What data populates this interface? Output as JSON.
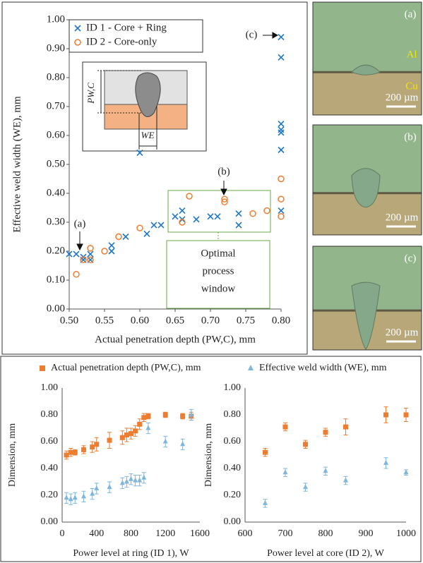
{
  "chart_data": [
    {
      "type": "scatter",
      "x_label": "Actual penetration depth (PW,C), mm",
      "y_label": "Effective weld width (WE), mm",
      "xlim": [
        0.5,
        0.8
      ],
      "xticks": [
        {
          "value": 0.5,
          "label": "0.50"
        },
        {
          "value": 0.55,
          "label": "0.55"
        },
        {
          "value": 0.6,
          "label": "0.60"
        },
        {
          "value": 0.65,
          "label": "0.65"
        },
        {
          "value": 0.7,
          "label": "0.70"
        },
        {
          "value": 0.75,
          "label": "0.75"
        },
        {
          "value": 0.8,
          "label": "0.80"
        }
      ],
      "ylim": [
        0,
        1
      ],
      "yticks": [
        {
          "value": 0,
          "label": "0.00"
        },
        {
          "value": 0.1,
          "label": "0.10"
        },
        {
          "value": 0.2,
          "label": "0.20"
        },
        {
          "value": 0.3,
          "label": "0.30"
        },
        {
          "value": 0.4,
          "label": "0.40"
        },
        {
          "value": 0.5,
          "label": "0.50"
        },
        {
          "value": 0.6,
          "label": "0.60"
        },
        {
          "value": 0.7,
          "label": "0.70"
        },
        {
          "value": 0.8,
          "label": "0.80"
        },
        {
          "value": 0.9,
          "label": "0.90"
        },
        {
          "value": 1,
          "label": "1.00"
        }
      ],
      "grid": false,
      "series": [
        {
          "name": "ID 1 - Core + Ring",
          "color": "#1f77c4",
          "marker": "x",
          "x": [
            0.5,
            0.51,
            0.52,
            0.52,
            0.53,
            0.53,
            0.56,
            0.56,
            0.58,
            0.6,
            0.61,
            0.62,
            0.63,
            0.65,
            0.66,
            0.66,
            0.68,
            0.7,
            0.71,
            0.74,
            0.74,
            0.8,
            0.8,
            0.8,
            0.8,
            0.8,
            0.8,
            0.8
          ],
          "values": [
            0.19,
            0.19,
            0.18,
            0.17,
            0.19,
            0.17,
            0.22,
            0.2,
            0.25,
            0.54,
            0.26,
            0.29,
            0.29,
            0.32,
            0.34,
            0.31,
            0.31,
            0.32,
            0.32,
            0.33,
            0.29,
            0.94,
            0.87,
            0.64,
            0.62,
            0.61,
            0.55,
            0.34
          ]
        },
        {
          "name": "ID 2 - Core-only",
          "color": "#ed7d31",
          "marker": "circle",
          "x": [
            0.51,
            0.52,
            0.53,
            0.53,
            0.55,
            0.57,
            0.6,
            0.66,
            0.67,
            0.72,
            0.72,
            0.76,
            0.78,
            0.8,
            0.8,
            0.8
          ],
          "values": [
            0.12,
            0.17,
            0.21,
            0.17,
            0.2,
            0.25,
            0.28,
            0.3,
            0.39,
            0.38,
            0.37,
            0.33,
            0.34,
            0.45,
            0.38,
            0.32
          ]
        }
      ],
      "legend": "top-left",
      "annotations": [
        "(a)",
        "(b)",
        "(c)"
      ],
      "window_label": [
        "Optimal",
        "process",
        "window"
      ],
      "inset_labels": [
        "PW,C",
        "WE"
      ]
    },
    {
      "type": "errorbar",
      "x_label": "Power level at ring (ID 1), W",
      "y_label": "Dimension, mm",
      "xlim": [
        0,
        1600
      ],
      "xticks": [
        0,
        400,
        800,
        1200,
        1600
      ],
      "ylim": [
        0,
        1
      ],
      "yticks": [
        {
          "value": 0,
          "label": "0.00"
        },
        {
          "value": 0.2,
          "label": "0.20"
        },
        {
          "value": 0.4,
          "label": "0.40"
        },
        {
          "value": 0.6,
          "label": "0.60"
        },
        {
          "value": 0.8,
          "label": "0.80"
        },
        {
          "value": 1,
          "label": "1.00"
        }
      ],
      "grid": false,
      "x": [
        50,
        100,
        150,
        250,
        350,
        400,
        550,
        700,
        750,
        800,
        850,
        900,
        950,
        1000,
        1200,
        1400,
        1500
      ],
      "series": [
        {
          "name": "Actual penetration depth (PW,C), mm",
          "color": "#ed7d31",
          "marker": "square",
          "values": [
            0.5,
            0.52,
            0.52,
            0.54,
            0.56,
            0.58,
            0.61,
            0.63,
            0.65,
            0.66,
            0.68,
            0.73,
            0.78,
            0.79,
            0.8,
            0.79,
            0.79
          ],
          "errors": [
            0.03,
            0.03,
            0.02,
            0.03,
            0.04,
            0.05,
            0.06,
            0.05,
            0.05,
            0.04,
            0.04,
            0.04,
            0.03,
            0.02,
            0.02,
            0.02,
            0.03
          ]
        },
        {
          "name": "Effective weld width (WE), mm",
          "color": "#7fb6dc",
          "marker": "triangle",
          "values": [
            0.18,
            0.17,
            0.18,
            0.19,
            0.21,
            0.25,
            0.26,
            0.29,
            0.3,
            0.32,
            0.31,
            0.31,
            0.33,
            0.7,
            0.6,
            0.58,
            0.8
          ],
          "errors": [
            0.04,
            0.04,
            0.04,
            0.04,
            0.04,
            0.04,
            0.04,
            0.04,
            0.04,
            0.04,
            0.04,
            0.04,
            0.04,
            0.04,
            0.04,
            0.04,
            0.04
          ]
        }
      ],
      "legend": "top"
    },
    {
      "type": "errorbar",
      "x_label": "Power level at core (ID 2), W",
      "y_label": "Dimension, mm",
      "xlim": [
        600,
        1000
      ],
      "xticks": [
        600,
        700,
        800,
        900,
        1000
      ],
      "ylim": [
        0,
        1
      ],
      "yticks": [
        {
          "value": 0,
          "label": "0.00"
        },
        {
          "value": 0.2,
          "label": "0.20"
        },
        {
          "value": 0.4,
          "label": "0.40"
        },
        {
          "value": 0.6,
          "label": "0.60"
        },
        {
          "value": 0.8,
          "label": "0.80"
        },
        {
          "value": 1,
          "label": "1.00"
        }
      ],
      "grid": false,
      "x": [
        650,
        700,
        750,
        800,
        850,
        950,
        1000
      ],
      "series": [
        {
          "color": "#ed7d31",
          "marker": "square",
          "values": [
            0.52,
            0.71,
            0.58,
            0.67,
            0.71,
            0.8,
            0.8
          ],
          "errors": [
            0.03,
            0.03,
            0.03,
            0.03,
            0.06,
            0.06,
            0.05
          ]
        },
        {
          "color": "#7fb6dc",
          "marker": "triangle",
          "values": [
            0.14,
            0.37,
            0.26,
            0.38,
            0.31,
            0.44,
            0.37
          ],
          "errors": [
            0.03,
            0.03,
            0.03,
            0.03,
            0.03,
            0.04,
            0.02
          ]
        }
      ]
    }
  ],
  "micrographs": [
    {
      "label": "(a)",
      "top_label": "Al",
      "bottom_label": "Cu",
      "scale_bar": "200 µm"
    },
    {
      "label": "(b)",
      "scale_bar": "200 µm"
    },
    {
      "label": "(c)",
      "scale_bar": "200 µm"
    }
  ]
}
